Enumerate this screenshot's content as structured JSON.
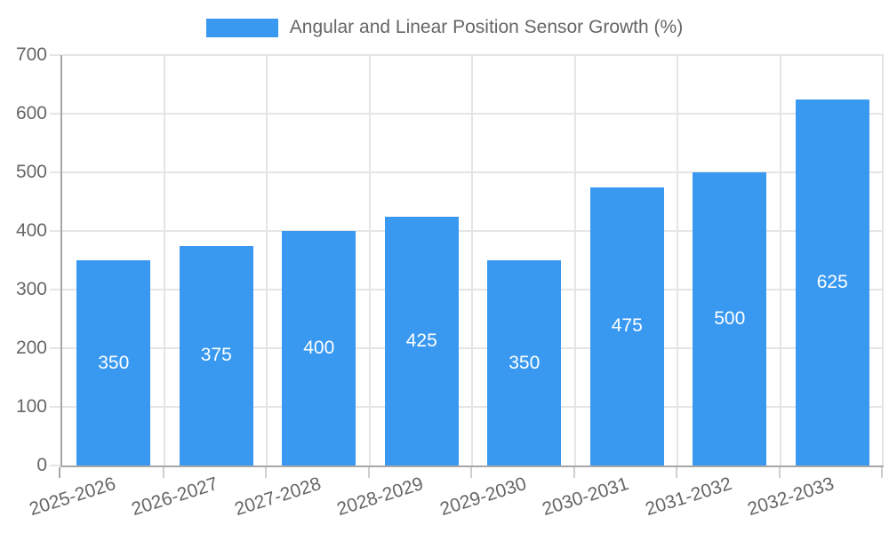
{
  "chart_data": {
    "type": "bar",
    "title": "Angular and Linear Position Sensor Growth (%)",
    "categories": [
      "2025-2026",
      "2026-2027",
      "2027-2028",
      "2028-2029",
      "2029-2030",
      "2030-2031",
      "2031-2032",
      "2032-2033"
    ],
    "values": [
      350,
      375,
      400,
      425,
      350,
      475,
      500,
      625
    ],
    "y_ticks": [
      0,
      100,
      200,
      300,
      400,
      500,
      600,
      700
    ],
    "ylim": [
      0,
      700
    ],
    "xlabel": "",
    "ylabel": "",
    "grid": true,
    "legend_position": "top",
    "bar_color": "#3999F0",
    "bar_label_color": "#ffffff",
    "axis_text_color": "#666666",
    "gridline_color": "#e5e5e5",
    "axis_line_color": "#a7a7a7",
    "minor_tick_color": "#cfcfcf"
  },
  "legend": {
    "label": "Angular and Linear Position Sensor Growth (%)"
  }
}
